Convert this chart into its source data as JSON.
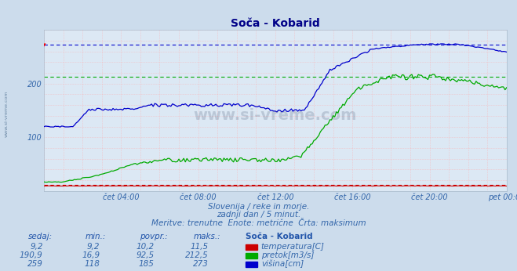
{
  "title": "Soča - Kobarid",
  "bg_color": "#ccdcec",
  "plot_bg_color": "#dce8f4",
  "grid_color_pink": "#ffaaaa",
  "grid_color_v": "#ccccdd",
  "x_ticks_labels": [
    "čet 04:00",
    "čet 08:00",
    "čet 12:00",
    "čet 16:00",
    "čet 20:00",
    "pet 00:00"
  ],
  "x_ticks_pos": [
    48,
    96,
    144,
    192,
    240,
    288
  ],
  "x_total": 288,
  "y_lim": [
    0,
    300
  ],
  "y_ticks": [
    100,
    200
  ],
  "max_line_blue": 273,
  "max_line_green": 212.5,
  "colors": {
    "red": "#cc0000",
    "green": "#00aa00",
    "blue": "#0000cc"
  },
  "title_color": "#000088",
  "text_color": "#3366aa",
  "label_color": "#2255aa",
  "subtitle1": "Slovenija / reke in morje.",
  "subtitle2": "zadnji dan / 5 minut.",
  "subtitle3": "Meritve: trenutne  Enote: metrične  Črta: maksimum",
  "table_header": [
    "sedaj:",
    "min.:",
    "povpr.:",
    "maks.:",
    "Soča - Kobarid"
  ],
  "table_data": [
    [
      "9,2",
      "9,2",
      "10,2",
      "11,5",
      "temperatura[C]",
      "#cc0000"
    ],
    [
      "190,9",
      "16,9",
      "92,5",
      "212,5",
      "pretok[m3/s]",
      "#00aa00"
    ],
    [
      "259",
      "118",
      "185",
      "273",
      "višina[cm]",
      "#0000cc"
    ]
  ]
}
